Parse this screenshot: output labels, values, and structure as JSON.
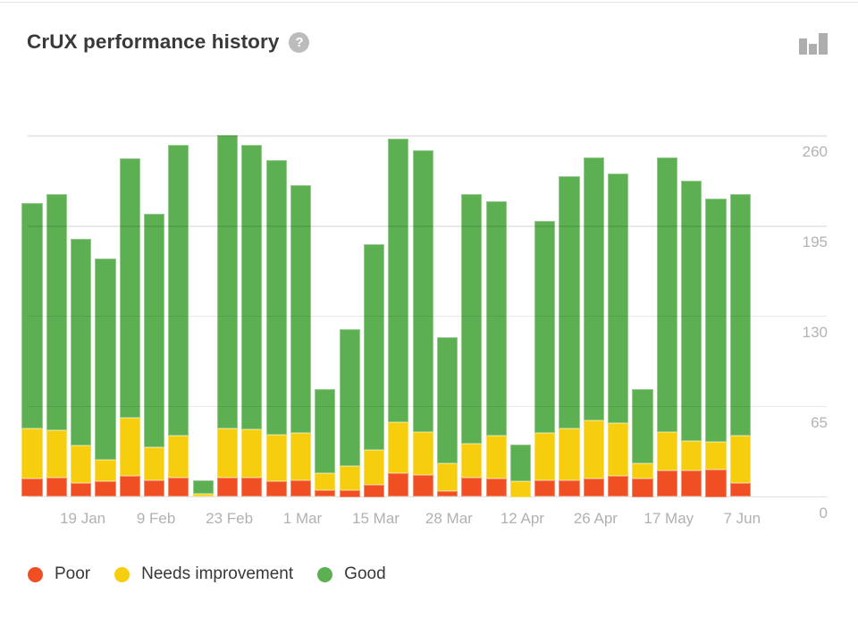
{
  "header": {
    "title": "CrUX performance history",
    "help_symbol": "?"
  },
  "chart_data": {
    "type": "bar",
    "stacked": true,
    "title": "CrUX performance history",
    "categories": [
      "",
      "",
      "19 Jan",
      "",
      "",
      "9 Feb",
      "",
      "",
      "23 Feb",
      "",
      "",
      "1 Mar",
      "",
      "",
      "15 Mar",
      "",
      "",
      "28 Mar",
      "",
      "",
      "12 Apr",
      "",
      "",
      "26 Apr",
      "",
      "",
      "17 May",
      "",
      "",
      "7 Jun"
    ],
    "series": [
      {
        "name": "Poor",
        "color": "#f04e23",
        "values": [
          13,
          14,
          10,
          11,
          15,
          12,
          14,
          0,
          14,
          14,
          11,
          12,
          5,
          5,
          9,
          17,
          16,
          4,
          14,
          13,
          0,
          12,
          12,
          13,
          15,
          13,
          19,
          19,
          20,
          10
        ]
      },
      {
        "name": "Needs improvement",
        "color": "#f6ce0d",
        "values": [
          36,
          34,
          27,
          16,
          42,
          24,
          30,
          2,
          35,
          35,
          34,
          34,
          12,
          17,
          25,
          37,
          31,
          20,
          24,
          31,
          11,
          34,
          37,
          42,
          38,
          11,
          28,
          21,
          20,
          34
        ]
      },
      {
        "name": "Good",
        "color": "#5cb052",
        "values": [
          163,
          170,
          149,
          145,
          187,
          168,
          210,
          10,
          212,
          205,
          198,
          179,
          61,
          99,
          148,
          204,
          203,
          91,
          180,
          169,
          27,
          153,
          182,
          190,
          180,
          54,
          198,
          188,
          175,
          174
        ]
      }
    ],
    "y_ticks": [
      0,
      65,
      130,
      195,
      260
    ],
    "ylim": [
      0,
      268
    ],
    "y_axis_side": "right",
    "grid": true,
    "legend_position": "bottom",
    "xlabel": "",
    "ylabel": ""
  }
}
